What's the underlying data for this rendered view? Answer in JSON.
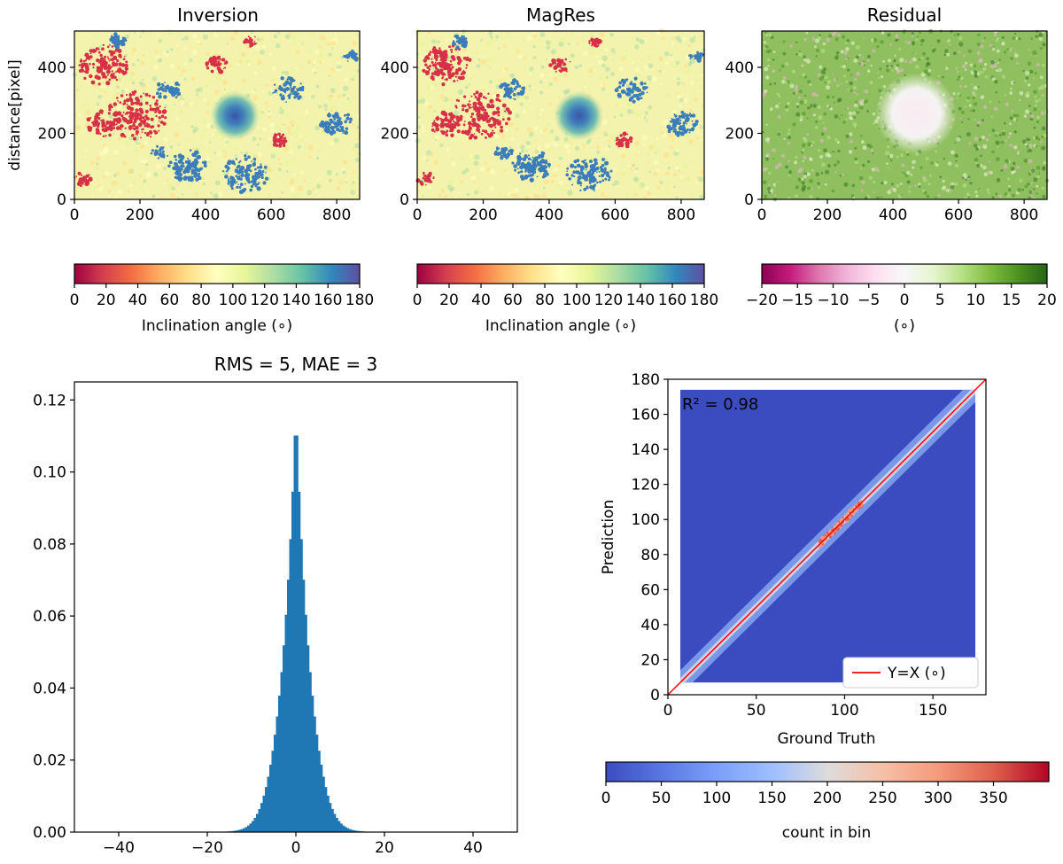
{
  "chart_data": [
    {
      "id": "inversion",
      "type": "heatmap",
      "title": "Inversion",
      "ylabel": "distance[pixel]",
      "xlabel": "",
      "xlim": [
        0,
        870
      ],
      "ylim": [
        0,
        510
      ],
      "xticks": [
        "0",
        "200",
        "400",
        "600",
        "800"
      ],
      "xtick_values": [
        0,
        200,
        400,
        600,
        800
      ],
      "yticks": [
        "0",
        "200",
        "400"
      ],
      "ytick_values": [
        0,
        200,
        400
      ],
      "colormap": "Spectral",
      "colorbar": {
        "label": "Inclination angle (∘)",
        "range": [
          0,
          180
        ],
        "ticks": [
          "0",
          "20",
          "40",
          "60",
          "80",
          "100",
          "120",
          "140",
          "160",
          "180"
        ],
        "tick_values": [
          0,
          20,
          40,
          60,
          80,
          100,
          120,
          140,
          160,
          180
        ]
      },
      "features": {
        "spot_center": [
          490,
          255
        ],
        "spot_radius": 70
      }
    },
    {
      "id": "magres",
      "type": "heatmap",
      "title": "MagRes",
      "ylabel": "",
      "xlabel": "",
      "xlim": [
        0,
        870
      ],
      "ylim": [
        0,
        510
      ],
      "xticks": [
        "0",
        "200",
        "400",
        "600",
        "800"
      ],
      "xtick_values": [
        0,
        200,
        400,
        600,
        800
      ],
      "yticks": [
        "0",
        "200",
        "400"
      ],
      "ytick_values": [
        0,
        200,
        400
      ],
      "colormap": "Spectral",
      "colorbar": {
        "label": "Inclination angle (∘)",
        "range": [
          0,
          180
        ],
        "ticks": [
          "0",
          "20",
          "40",
          "60",
          "80",
          "100",
          "120",
          "140",
          "160",
          "180"
        ],
        "tick_values": [
          0,
          20,
          40,
          60,
          80,
          100,
          120,
          140,
          160,
          180
        ]
      },
      "features": {
        "spot_center": [
          490,
          255
        ],
        "spot_radius": 70
      }
    },
    {
      "id": "residual",
      "type": "heatmap",
      "title": "Residual",
      "ylabel": "",
      "xlabel": "",
      "xlim": [
        0,
        870
      ],
      "ylim": [
        0,
        510
      ],
      "xticks": [
        "0",
        "200",
        "400",
        "600",
        "800"
      ],
      "xtick_values": [
        0,
        200,
        400,
        600,
        800
      ],
      "yticks": [
        "0",
        "200",
        "400"
      ],
      "ytick_values": [
        0,
        200,
        400
      ],
      "colormap": "PiYG",
      "colorbar": {
        "label": "(∘)",
        "range": [
          -20,
          20
        ],
        "ticks": [
          "−20",
          "−15",
          "−10",
          "−5",
          "0",
          "5",
          "10",
          "15",
          "20"
        ],
        "tick_values": [
          -20,
          -15,
          -10,
          -5,
          0,
          5,
          10,
          15,
          20
        ]
      },
      "features": {
        "spot_center": [
          470,
          250
        ],
        "spot_radius": 120
      }
    },
    {
      "id": "histogram",
      "type": "bar",
      "title": "RMS = 5, MAE = 3",
      "xlabel": "",
      "ylabel": "",
      "xlim": [
        -50,
        50
      ],
      "ylim": [
        0,
        0.125
      ],
      "xticks": [
        "−40",
        "−20",
        "0",
        "20",
        "40"
      ],
      "xtick_values": [
        -40,
        -20,
        0,
        20,
        40
      ],
      "yticks": [
        "0.00",
        "0.02",
        "0.04",
        "0.06",
        "0.08",
        "0.10",
        "0.12"
      ],
      "ytick_values": [
        0,
        0.02,
        0.04,
        0.06,
        0.08,
        0.1,
        0.12
      ],
      "color": "#1f77b4",
      "bin_width": 0.5,
      "peak": 0.119,
      "core_scale": 2.4,
      "tail_scale": 4.0
    },
    {
      "id": "scatter-density",
      "type": "heatmap",
      "title": "",
      "xlabel": "Ground Truth",
      "ylabel": "Prediction",
      "xlim": [
        0,
        180
      ],
      "ylim": [
        0,
        180
      ],
      "xticks": [
        "0",
        "50",
        "100",
        "150"
      ],
      "xtick_values": [
        0,
        50,
        100,
        150
      ],
      "yticks": [
        "0",
        "20",
        "40",
        "60",
        "80",
        "100",
        "120",
        "140",
        "160",
        "180"
      ],
      "ytick_values": [
        0,
        20,
        40,
        60,
        80,
        100,
        120,
        140,
        160,
        180
      ],
      "data_extent": [
        7,
        174
      ],
      "annotation": "R² = 0.98",
      "annotation_color": "#d62728",
      "line": {
        "name": "Y=X (∘)",
        "color": "#ff0000"
      },
      "legend": "lower-right",
      "background_color": "#3b4cc0",
      "colorbar": {
        "label": "count in bin",
        "range": [
          0,
          400
        ],
        "ticks": [
          "0",
          "50",
          "100",
          "150",
          "200",
          "250",
          "300",
          "350"
        ],
        "tick_values": [
          0,
          50,
          100,
          150,
          200,
          250,
          300,
          350
        ],
        "colormap": "coolwarm"
      }
    }
  ]
}
